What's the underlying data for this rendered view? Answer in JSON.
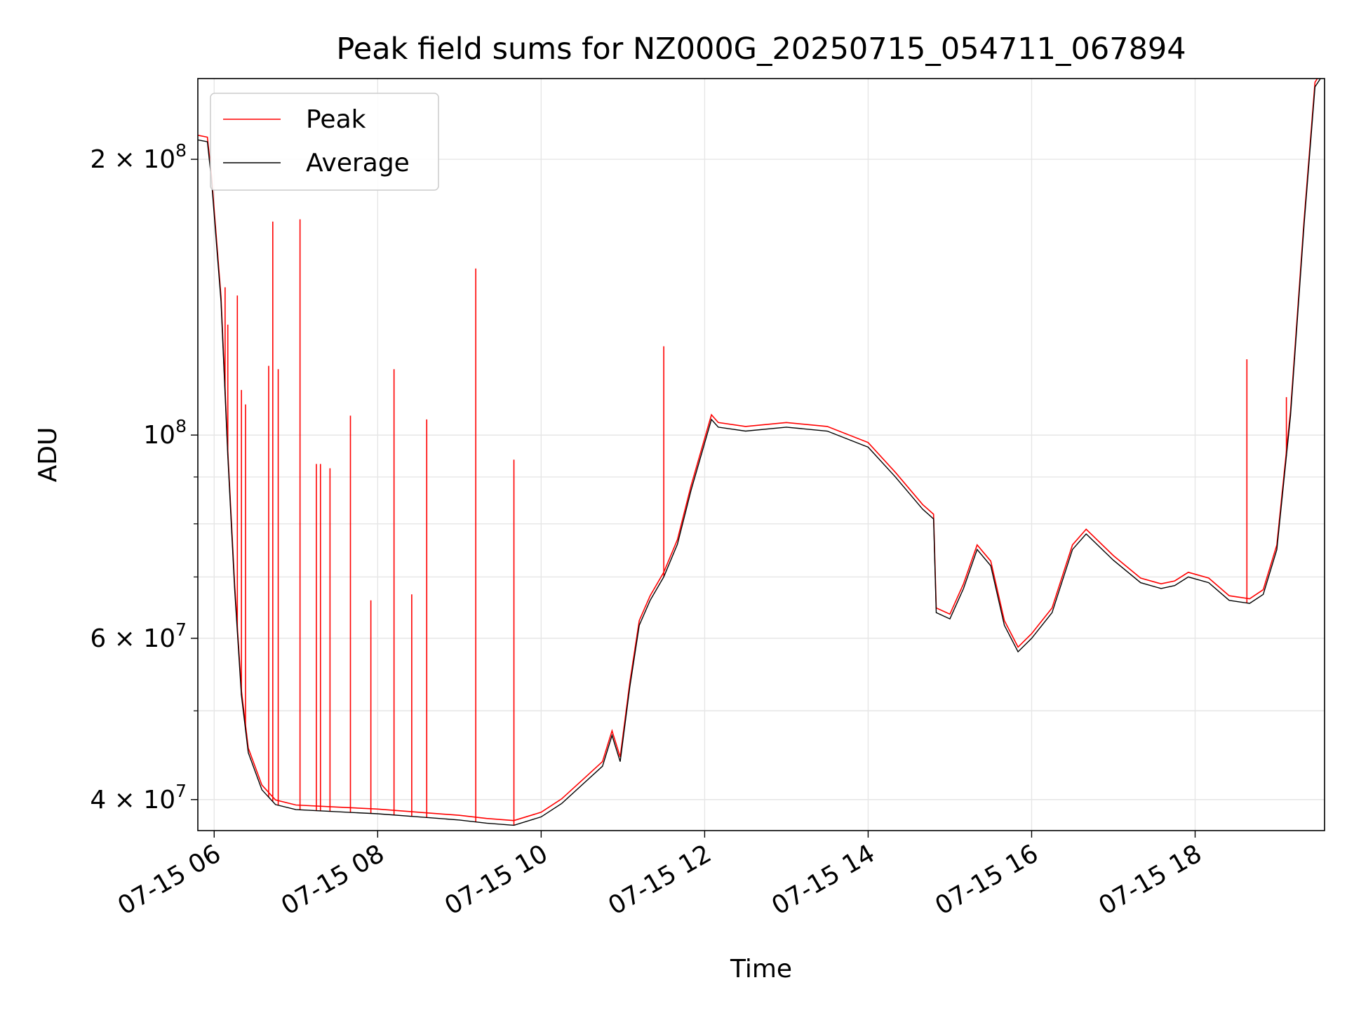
{
  "chart_data": {
    "type": "line",
    "title": "Peak field sums for NZ000G_20250715_054711_067894",
    "xlabel": "Time",
    "ylabel": "ADU",
    "y_scale": "log",
    "ylim": [
      37000000,
      245000000
    ],
    "xlim": [
      "2025-07-15 05:48",
      "2025-07-15 19:35"
    ],
    "x_ticks": [
      {
        "value": "2025-07-15 06:00",
        "label": "07-15 06"
      },
      {
        "value": "2025-07-15 08:00",
        "label": "07-15 08"
      },
      {
        "value": "2025-07-15 10:00",
        "label": "07-15 10"
      },
      {
        "value": "2025-07-15 12:00",
        "label": "07-15 12"
      },
      {
        "value": "2025-07-15 14:00",
        "label": "07-15 14"
      },
      {
        "value": "2025-07-15 16:00",
        "label": "07-15 16"
      },
      {
        "value": "2025-07-15 18:00",
        "label": "07-15 18"
      }
    ],
    "y_ticks": [
      {
        "value": 40000000,
        "mantissa": "4",
        "exponent": "7"
      },
      {
        "value": 60000000,
        "mantissa": "6",
        "exponent": "7"
      },
      {
        "value": 100000000,
        "mantissa": "",
        "exponent": "8"
      },
      {
        "value": 200000000,
        "mantissa": "2",
        "exponent": "8"
      }
    ],
    "grid": true,
    "legend_position": "upper-left",
    "series": [
      {
        "name": "Average",
        "color": "#000000",
        "points": [
          [
            "2025-07-15 05:48",
            210000000
          ],
          [
            "2025-07-15 05:55",
            209000000
          ],
          [
            "2025-07-15 05:58",
            190000000
          ],
          [
            "2025-07-15 06:05",
            140000000
          ],
          [
            "2025-07-15 06:10",
            95000000
          ],
          [
            "2025-07-15 06:15",
            68000000
          ],
          [
            "2025-07-15 06:20",
            52000000
          ],
          [
            "2025-07-15 06:25",
            45000000
          ],
          [
            "2025-07-15 06:35",
            41000000
          ],
          [
            "2025-07-15 06:45",
            39500000
          ],
          [
            "2025-07-15 07:00",
            39000000
          ],
          [
            "2025-07-15 07:30",
            38800000
          ],
          [
            "2025-07-15 08:00",
            38600000
          ],
          [
            "2025-07-15 08:30",
            38300000
          ],
          [
            "2025-07-15 09:00",
            38000000
          ],
          [
            "2025-07-15 09:20",
            37700000
          ],
          [
            "2025-07-15 09:40",
            37500000
          ],
          [
            "2025-07-15 10:00",
            38300000
          ],
          [
            "2025-07-15 10:15",
            39600000
          ],
          [
            "2025-07-15 10:30",
            41500000
          ],
          [
            "2025-07-15 10:45",
            43500000
          ],
          [
            "2025-07-15 10:52",
            47000000
          ],
          [
            "2025-07-15 10:58",
            44000000
          ],
          [
            "2025-07-15 11:05",
            53000000
          ],
          [
            "2025-07-15 11:12",
            62000000
          ],
          [
            "2025-07-15 11:20",
            66000000
          ],
          [
            "2025-07-15 11:30",
            70000000
          ],
          [
            "2025-07-15 11:40",
            76000000
          ],
          [
            "2025-07-15 11:50",
            87000000
          ],
          [
            "2025-07-15 12:00",
            98000000
          ],
          [
            "2025-07-15 12:05",
            104000000
          ],
          [
            "2025-07-15 12:10",
            102000000
          ],
          [
            "2025-07-15 12:30",
            101000000
          ],
          [
            "2025-07-15 13:00",
            102000000
          ],
          [
            "2025-07-15 13:30",
            101000000
          ],
          [
            "2025-07-15 14:00",
            97000000
          ],
          [
            "2025-07-15 14:20",
            90000000
          ],
          [
            "2025-07-15 14:40",
            83000000
          ],
          [
            "2025-07-15 14:48",
            81000000
          ],
          [
            "2025-07-15 14:50",
            64000000
          ],
          [
            "2025-07-15 15:00",
            63000000
          ],
          [
            "2025-07-15 15:10",
            68000000
          ],
          [
            "2025-07-15 15:20",
            75000000
          ],
          [
            "2025-07-15 15:30",
            72000000
          ],
          [
            "2025-07-15 15:40",
            62000000
          ],
          [
            "2025-07-15 15:50",
            58000000
          ],
          [
            "2025-07-15 16:00",
            60000000
          ],
          [
            "2025-07-15 16:15",
            64000000
          ],
          [
            "2025-07-15 16:30",
            75000000
          ],
          [
            "2025-07-15 16:40",
            78000000
          ],
          [
            "2025-07-15 17:00",
            73000000
          ],
          [
            "2025-07-15 17:20",
            69000000
          ],
          [
            "2025-07-15 17:35",
            68000000
          ],
          [
            "2025-07-15 17:45",
            68500000
          ],
          [
            "2025-07-15 17:55",
            70000000
          ],
          [
            "2025-07-15 18:10",
            69000000
          ],
          [
            "2025-07-15 18:25",
            66000000
          ],
          [
            "2025-07-15 18:40",
            65500000
          ],
          [
            "2025-07-15 18:50",
            67000000
          ],
          [
            "2025-07-15 19:00",
            75000000
          ],
          [
            "2025-07-15 19:10",
            105000000
          ],
          [
            "2025-07-15 19:20",
            170000000
          ],
          [
            "2025-07-15 19:28",
            240000000
          ],
          [
            "2025-07-15 19:32",
            245000000
          ]
        ]
      },
      {
        "name": "Peak",
        "color": "#ff0000",
        "spikes": [
          [
            "2025-07-15 06:08",
            145000000
          ],
          [
            "2025-07-15 06:10",
            132000000
          ],
          [
            "2025-07-15 06:17",
            142000000
          ],
          [
            "2025-07-15 06:20",
            112000000
          ],
          [
            "2025-07-15 06:23",
            108000000
          ],
          [
            "2025-07-15 06:40",
            119000000
          ],
          [
            "2025-07-15 06:43",
            171000000
          ],
          [
            "2025-07-15 06:47",
            118000000
          ],
          [
            "2025-07-15 07:03",
            172000000
          ],
          [
            "2025-07-15 07:15",
            93000000
          ],
          [
            "2025-07-15 07:18",
            93000000
          ],
          [
            "2025-07-15 07:25",
            92000000
          ],
          [
            "2025-07-15 07:40",
            105000000
          ],
          [
            "2025-07-15 07:55",
            66000000
          ],
          [
            "2025-07-15 08:12",
            118000000
          ],
          [
            "2025-07-15 08:25",
            67000000
          ],
          [
            "2025-07-15 08:36",
            104000000
          ],
          [
            "2025-07-15 09:12",
            152000000
          ],
          [
            "2025-07-15 09:40",
            94000000
          ],
          [
            "2025-07-15 11:30",
            125000000
          ],
          [
            "2025-07-15 18:38",
            121000000
          ],
          [
            "2025-07-15 19:07",
            110000000
          ],
          [
            "2025-07-15 19:13",
            121000000
          ]
        ]
      }
    ]
  }
}
